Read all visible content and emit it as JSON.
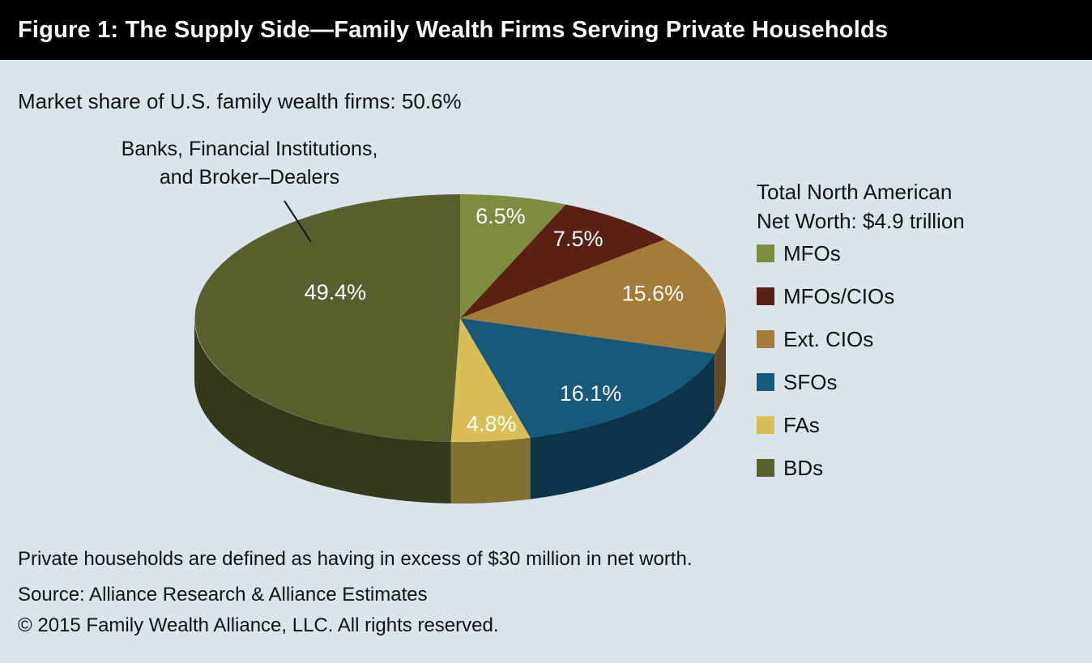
{
  "header": {
    "title": "Figure 1: The Supply Side—Family Wealth Firms Serving Private Households"
  },
  "subtitle": "Market share of U.S. family wealth firms: 50.6%",
  "annotation": {
    "line1": "Banks, Financial Institutions,",
    "line2": "and Broker–Dealers"
  },
  "legend": {
    "title_line1": "Total North American",
    "title_line2": "Net Worth: $4.9 trillion"
  },
  "chart_data": {
    "type": "pie",
    "style": "3d",
    "title": "Market share of U.S. family wealth firms: 50.6%",
    "categories": [
      "MFOs",
      "MFOs/CIOs",
      "Ext. CIOs",
      "SFOs",
      "FAs",
      "BDs"
    ],
    "values": [
      6.5,
      7.5,
      15.6,
      16.1,
      4.8,
      49.4
    ],
    "labels": [
      "6.5%",
      "7.5%",
      "15.6%",
      "16.1%",
      "4.8%",
      "49.4%"
    ],
    "colors": [
      "#7d8c3f",
      "#5a2113",
      "#a57b39",
      "#16597a",
      "#d9bd55",
      "#595f2c"
    ],
    "legend_position": "right",
    "legend_title": "Total North American Net Worth: $4.9 trillion",
    "annotation": "Banks, Financial Institutions, and Broker–Dealers (points to 49.4% BDs slice)",
    "label_color": "#ffffff"
  },
  "theme": {
    "background": "#d9e5eb",
    "header_bg": "#000000",
    "header_text": "#ffffff",
    "body_text": "#111111"
  },
  "footer": {
    "note": "Private households are defined as having in excess of $30 million in net worth.",
    "source": "Source: Alliance Research & Alliance Estimates",
    "copyright": "© 2015 Family Wealth Alliance, LLC. All rights reserved."
  }
}
